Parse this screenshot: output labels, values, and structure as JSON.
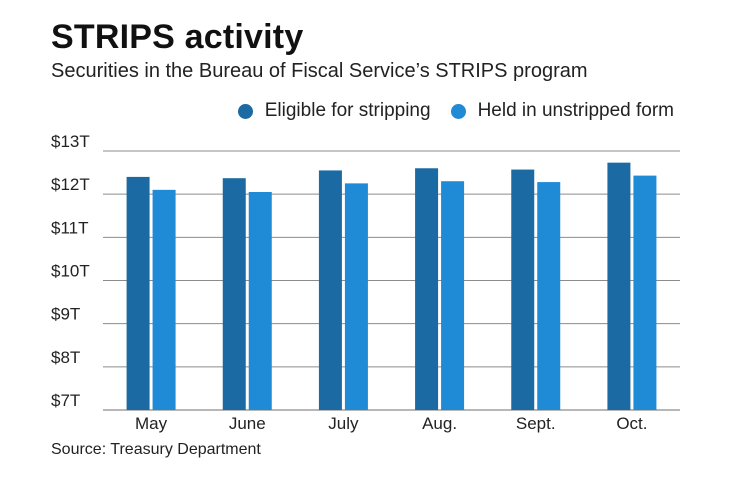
{
  "header": {
    "title": "STRIPS activity",
    "subtitle": "Securities in the Bureau of Fiscal Service’s STRIPS program"
  },
  "footer": {
    "source": "Source: Treasury Department"
  },
  "colors": {
    "eligible": "#1c6aa3",
    "held": "#1f8ad6",
    "grid": "#8c8c8c",
    "axis": "#8c8c8c"
  },
  "chart_data": {
    "type": "bar",
    "title": "STRIPS activity",
    "subtitle": "Securities in the Bureau of Fiscal Service’s STRIPS program",
    "xlabel": "",
    "ylabel": "",
    "categories": [
      "May",
      "June",
      "July",
      "Aug.",
      "Sept.",
      "Oct."
    ],
    "series": [
      {
        "name": "Eligible for stripping",
        "values": [
          12.4,
          12.37,
          12.55,
          12.6,
          12.57,
          12.73
        ]
      },
      {
        "name": "Held in unstripped form",
        "values": [
          12.1,
          12.05,
          12.25,
          12.3,
          12.28,
          12.43
        ]
      }
    ],
    "ylim": [
      7,
      13
    ],
    "y_ticks": [
      7,
      8,
      9,
      10,
      11,
      12,
      13
    ],
    "y_tick_labels": [
      "$7T",
      "$8T",
      "$9T",
      "$10T",
      "$11T",
      "$12T",
      "$13T"
    ],
    "grid": true,
    "legend_position": "top-right"
  }
}
